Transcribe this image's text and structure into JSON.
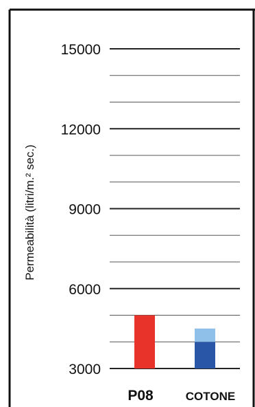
{
  "chart_data": {
    "type": "bar",
    "ylabel": "Permeabilità (litri/m.² sec.)",
    "yticks": [
      "15000",
      "12000",
      "9000",
      "6000",
      "3000"
    ],
    "ylim": [
      3000,
      15000
    ],
    "categories": [
      "P08",
      "COTONE"
    ],
    "bars": [
      {
        "category": "P08",
        "segments": [
          {
            "from": 3000,
            "to": 5000,
            "color": "#e8332a"
          }
        ]
      },
      {
        "category": "COTONE",
        "segments": [
          {
            "from": 3000,
            "to": 4000,
            "color": "#2a56a8"
          },
          {
            "from": 4000,
            "to": 4500,
            "color": "#8fc0ea"
          }
        ]
      }
    ],
    "grid": true,
    "colors": {
      "frame": "#111111",
      "grid": "#555555",
      "axis_line": "#222222"
    }
  }
}
